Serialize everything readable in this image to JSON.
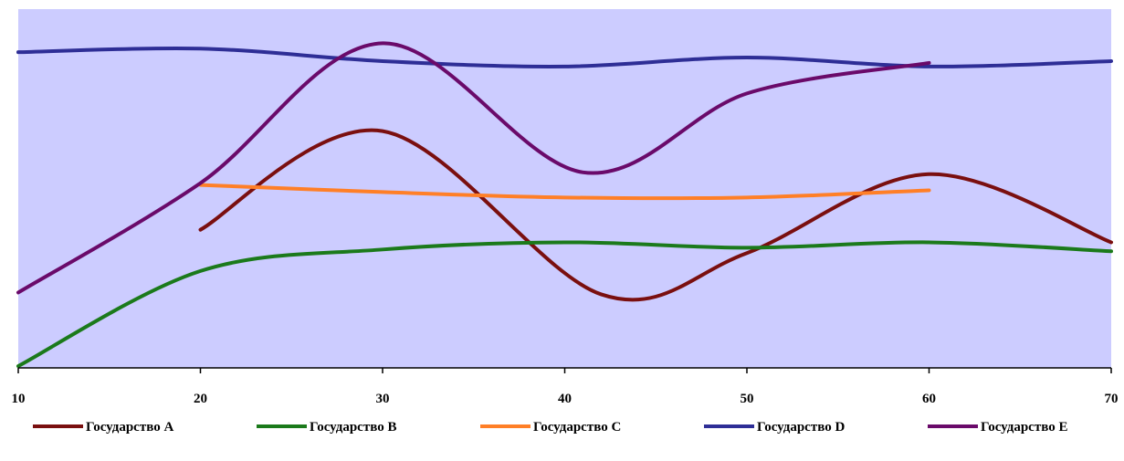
{
  "chart_data": {
    "type": "line",
    "title": "",
    "xlabel": "",
    "ylabel": "",
    "xlim": [
      10,
      70
    ],
    "ylim": [
      0,
      100
    ],
    "x_ticks": [
      10,
      20,
      30,
      40,
      50,
      60,
      70
    ],
    "grid": false,
    "smooth": true,
    "legend_position": "bottom",
    "plot_background": "#ccccff",
    "series": [
      {
        "name": "Государство A",
        "color": "#7a0f0f",
        "x": [
          20,
          30,
          42,
          50,
          60,
          70
        ],
        "y": [
          38.5,
          66,
          20.5,
          32,
          54,
          35
        ]
      },
      {
        "name": "Государство B",
        "color": "#1b7a1b",
        "x": [
          10,
          20,
          30,
          40,
          50,
          60,
          70
        ],
        "y": [
          0.5,
          27,
          33,
          35,
          33.5,
          35,
          32.5
        ]
      },
      {
        "name": "Государство C",
        "color": "#ff7f27",
        "x": [
          20,
          30,
          40,
          50,
          60
        ],
        "y": [
          51,
          49,
          47.5,
          47.5,
          49.5
        ]
      },
      {
        "name": "Государство D",
        "color": "#2e2e96",
        "x": [
          10,
          20,
          30,
          40,
          50,
          60,
          70
        ],
        "y": [
          88,
          89,
          85.5,
          84,
          86.5,
          84,
          85.5
        ]
      },
      {
        "name": "Государство E",
        "color": "#6a0a6a",
        "x": [
          10,
          20,
          30,
          41,
          50,
          60
        ],
        "y": [
          21,
          51.5,
          90.5,
          54.5,
          76.5,
          85
        ]
      }
    ]
  }
}
